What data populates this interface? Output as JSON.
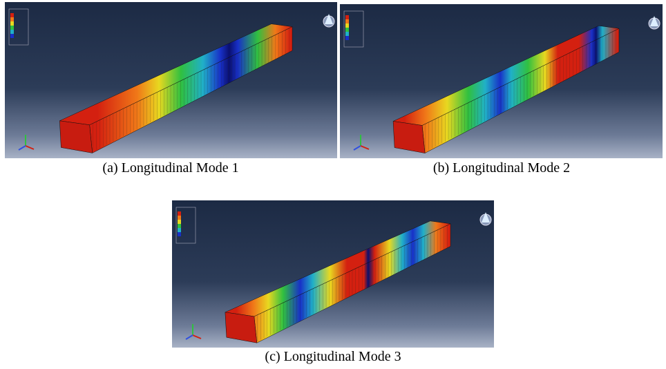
{
  "figures": [
    {
      "caption": "(a) Longitudinal Mode 1"
    },
    {
      "caption": "(b) Longitudinal Mode 2"
    },
    {
      "caption": "(c) Longitudinal Mode 3"
    }
  ]
}
